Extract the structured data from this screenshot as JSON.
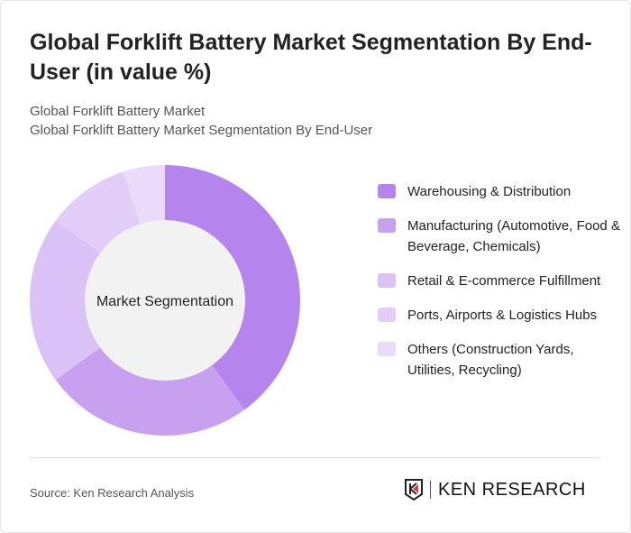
{
  "title": "Global Forklift Battery Market Segmentation By End-User (in value %)",
  "subtitle1": "Global Forklift Battery Market",
  "subtitle2": "Global Forklift Battery Market Segmentation By End-User",
  "source": "Source: Ken Research Analysis",
  "logo_text": "KEN RESEARCH",
  "chart_data": {
    "type": "pie",
    "variant": "donut",
    "center_label": "Market Segmentation",
    "legend_position": "right",
    "categories": [
      "Warehousing & Distribution",
      "Manufacturing (Automotive, Food & Beverage, Chemicals)",
      "Retail & E-commerce Fulfillment",
      "Ports, Airports & Logistics Hubs",
      "Others (Construction Yards, Utilities, Recycling)"
    ],
    "values": [
      40,
      25,
      20,
      10,
      5
    ],
    "colors": [
      "#b584ec",
      "#c7a0ef",
      "#dac2f6",
      "#e1cdf7",
      "#e9dbf9"
    ]
  }
}
